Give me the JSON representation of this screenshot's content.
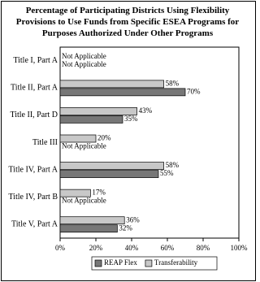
{
  "chart_data": {
    "type": "bar",
    "orientation": "horizontal",
    "title": "Percentage of Participating Districts Using Flexibility Provisions to Use Funds from Specific ESEA Programs for Purposes Authorized Under Other Programs",
    "categories": [
      "Title I, Part A",
      "Title II, Part A",
      "Title II, Part D",
      "Title III",
      "Title IV, Part A",
      "Title IV, Part B",
      "Title V, Part A"
    ],
    "series": [
      {
        "name": "REAP Flex",
        "color": "#777777",
        "values": [
          null,
          70,
          35,
          null,
          55,
          null,
          32
        ],
        "value_labels": [
          "Not Applicable",
          "70%",
          "35%",
          "Not Applicable",
          "55%",
          "Not Applicable",
          "32%"
        ]
      },
      {
        "name": "Transferability",
        "color": "#c8c8c8",
        "values": [
          null,
          58,
          43,
          20,
          58,
          17,
          36
        ],
        "value_labels": [
          "Not Applicable",
          "58%",
          "43%",
          "20%",
          "58%",
          "17%",
          "36%"
        ]
      }
    ],
    "xlim": [
      0,
      100
    ],
    "xticks": [
      {
        "value": 0,
        "label": "0%"
      },
      {
        "value": 20,
        "label": "20%"
      },
      {
        "value": 40,
        "label": "40%"
      },
      {
        "value": 60,
        "label": "60%"
      },
      {
        "value": 80,
        "label": "80%"
      },
      {
        "value": 100,
        "label": "100%"
      }
    ],
    "legend": "bottom"
  }
}
